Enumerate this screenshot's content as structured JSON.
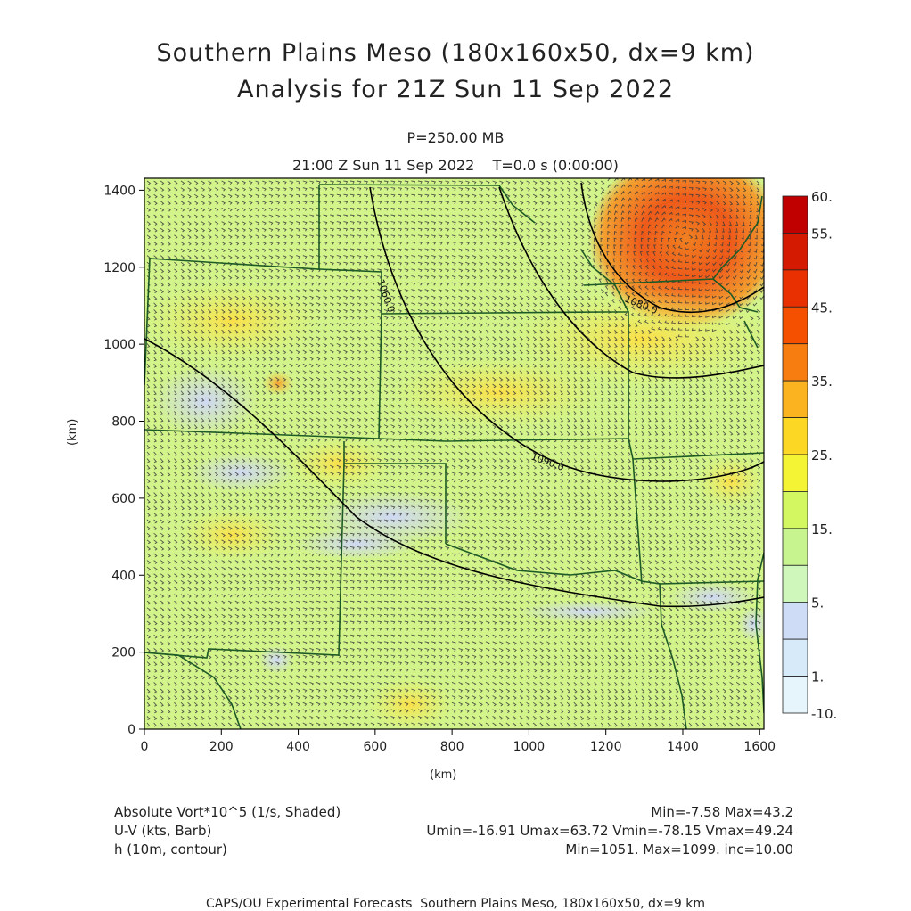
{
  "title": {
    "line1": "Southern Plains Meso (180x160x50, dx=9 km)",
    "line2": "Analysis for 21Z Sun 11 Sep 2022"
  },
  "subtitle": {
    "level": "P=250.00 MB",
    "time": "21:00 Z Sun 11 Sep 2022    T=0.0 s (0:00:00)"
  },
  "axes": {
    "x_unit": "(km)",
    "y_unit": "(km)",
    "x_ticks": [
      "0",
      "200",
      "400",
      "600",
      "800",
      "1000",
      "1200",
      "1400",
      "1600"
    ],
    "y_ticks": [
      "0",
      "200",
      "400",
      "600",
      "800",
      "1000",
      "1200",
      "1400"
    ],
    "xlim": [
      0,
      1611
    ],
    "ylim": [
      0,
      1431
    ]
  },
  "colorbar": {
    "labels": [
      "60.",
      "55.",
      "45.",
      "35.",
      "25.",
      "15.",
      "5.",
      "1.",
      "-10."
    ],
    "colors": [
      "#c00000",
      "#d41a00",
      "#e83000",
      "#f55000",
      "#f77d10",
      "#fbb320",
      "#fcd723",
      "#f4f435",
      "#d3f760",
      "#c7f48e",
      "#cff7bc",
      "#cfdcf6",
      "#d6eafa",
      "#e6f5fb"
    ]
  },
  "contours": [
    {
      "label": "1060.0",
      "value": 1060
    },
    {
      "label": "1080.0",
      "value": 1080
    },
    {
      "label": "1090.0",
      "value": 1090
    }
  ],
  "legend": {
    "row1_left": "Absolute Vort*10^5 (1/s, Shaded)",
    "row1_right": "Min=-7.58 Max=43.2",
    "row2_left": "U-V (kts, Barb)",
    "row2_right": "Umin=-16.91 Umax=63.72 Vmin=-78.15 Vmax=49.24",
    "row3_left": "h (10m, contour)",
    "row3_right": "Min=1051. Max=1099. inc=10.00"
  },
  "footer": "CAPS/OU Experimental Forecasts  Southern Plains Meso, 180x160x50, dx=9 km",
  "style": {
    "base_field": "#d2f48a",
    "state_line": "#1d5a25",
    "contour_line": "#000000",
    "barb": "#3a3a3a"
  }
}
